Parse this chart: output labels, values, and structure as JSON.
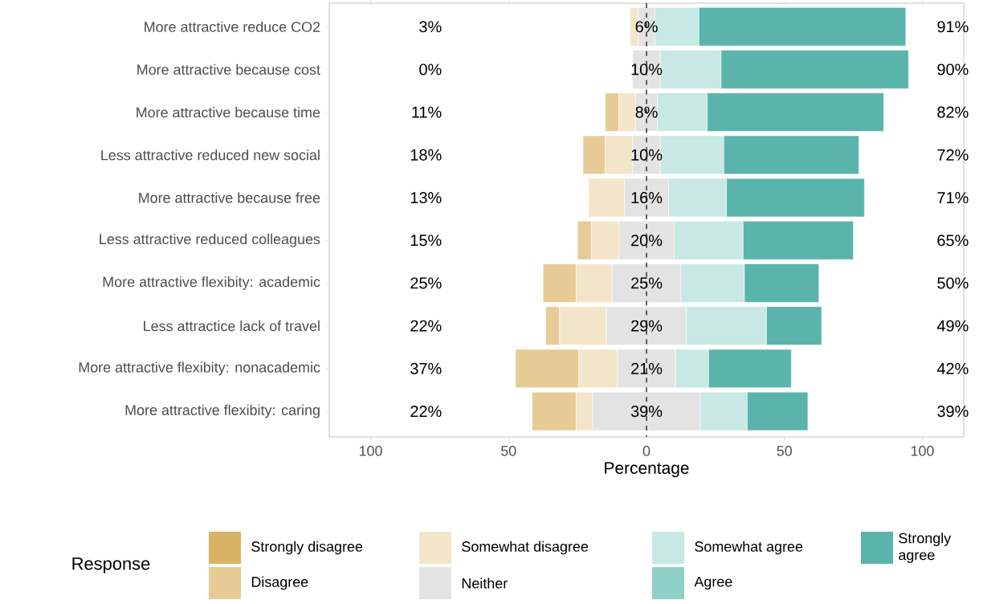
{
  "chart_data": {
    "type": "bar",
    "orientation": "horizontal",
    "categories": [
      "More attractive reduce CO2",
      "More attractive because cost",
      "More attractive because time",
      "Less attractive reduced new social",
      "More attractive because free",
      "Less attractive reduced colleagues",
      "More attractive flexibity: academic",
      "Less attractice lack of travel",
      "More attractive flexibity: nonacademic",
      "More attractive flexibity: caring"
    ],
    "series": [
      {
        "name": "Strongly disagree",
        "color": "#d8b365",
        "values": [
          null,
          null,
          null,
          null,
          null,
          null,
          null,
          null,
          null,
          null
        ]
      },
      {
        "name": "Disagree",
        "color": "#e6cb97",
        "values": [
          null,
          null,
          5,
          8,
          null,
          5,
          12,
          5,
          23,
          16
        ],
        "base": [
          null,
          null,
          -15,
          -23,
          null,
          -25,
          -37.5,
          -36.5,
          -47.5,
          -41.5
        ]
      },
      {
        "name": "Somewhat disagree",
        "color": "#f3e5c8",
        "values": [
          3,
          null,
          6,
          10,
          13,
          10,
          13,
          17,
          14,
          6
        ],
        "base": [
          -6,
          null,
          -10,
          -15,
          -21,
          -20,
          -25.5,
          -31.5,
          -24.5,
          -25.5
        ]
      },
      {
        "name": "Neither",
        "color": "#e3e3e3",
        "values": [
          6,
          10,
          8,
          10,
          16,
          20,
          25,
          29,
          21,
          39
        ],
        "base": [
          -3,
          -5,
          -4,
          -5,
          -8,
          -10,
          -12.5,
          -14.5,
          -10.5,
          -19.5
        ],
        "value_labels": [
          "6%",
          "10%",
          "8%",
          "10%",
          "16%",
          "20%",
          "25%",
          "29%",
          "21%",
          "39%"
        ]
      },
      {
        "name": "Somewhat agree",
        "color": "#c7e8e4",
        "values": [
          16,
          22,
          18,
          23,
          21,
          25,
          23,
          29,
          12,
          17
        ],
        "base": [
          3,
          5,
          4,
          5,
          8,
          10,
          12.5,
          14.5,
          10.5,
          19.5
        ]
      },
      {
        "name": "Agree",
        "color": "#90d1c7",
        "values": [
          null,
          null,
          null,
          null,
          null,
          null,
          null,
          null,
          null,
          null
        ]
      },
      {
        "name": "Strongly agree",
        "color": "#5ab4ac",
        "values": [
          75,
          68,
          64,
          49,
          50,
          40,
          27,
          20,
          30,
          22
        ],
        "base": [
          19,
          27,
          22,
          28,
          29,
          35,
          35.5,
          43.5,
          22.5,
          36.5
        ]
      }
    ],
    "xlim": [
      -115,
      115
    ],
    "xticks": [
      {
        "value": -100,
        "label": "100"
      },
      {
        "value": -50,
        "label": "50"
      },
      0,
      50,
      100
    ],
    "xlabel": "Percentage",
    "legend_title": "Response",
    "legend": "bottom",
    "ref_lines": [
      {
        "axis": "x",
        "value": 0,
        "color": "#000000",
        "line_style": "dashed"
      }
    ],
    "annotations": [
      "3%",
      "0%",
      "11%",
      "18%",
      "13%",
      "15%",
      "25%",
      "22%",
      "37%",
      "22%",
      "91%",
      "90%",
      "82%",
      "72%",
      "71%",
      "65%",
      "50%",
      "49%",
      "42%",
      "39%"
    ]
  }
}
